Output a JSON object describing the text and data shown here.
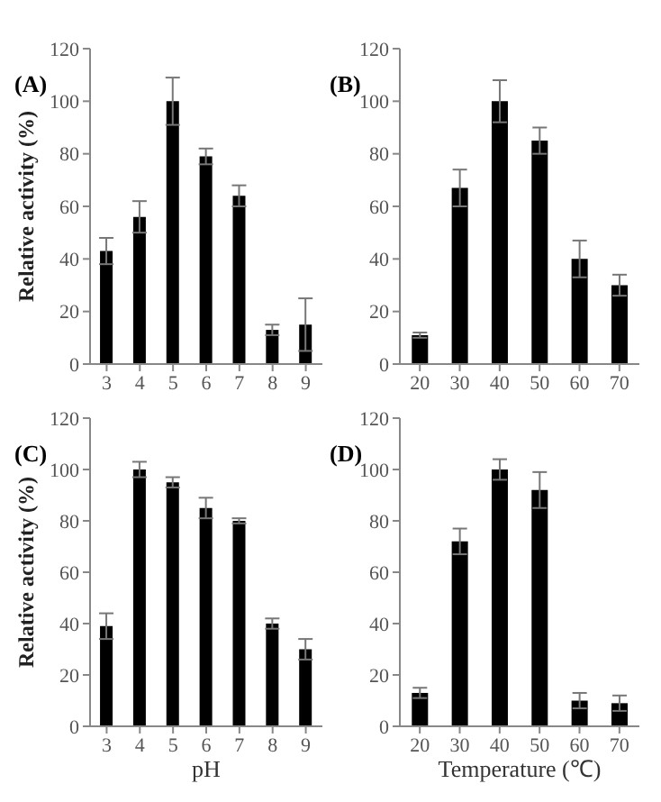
{
  "chart_data": [
    {
      "type": "bar",
      "title": "(A)",
      "ylabel": "Relative activity (%)",
      "categories": [
        "3",
        "4",
        "5",
        "6",
        "7",
        "8",
        "9"
      ],
      "values": [
        43,
        56,
        100,
        79,
        64,
        13,
        15
      ],
      "errors": [
        5,
        6,
        9,
        3,
        4,
        2,
        10
      ],
      "color": "#000000",
      "ylim": [
        0,
        120
      ],
      "yticks": [
        0,
        20,
        40,
        60,
        80,
        100,
        120
      ],
      "grid": false
    },
    {
      "type": "bar",
      "title": "(B)",
      "categories": [
        "20",
        "30",
        "40",
        "50",
        "60",
        "70"
      ],
      "values": [
        11,
        67,
        100,
        85,
        40,
        30
      ],
      "errors": [
        1,
        7,
        8,
        5,
        7,
        4
      ],
      "color": "#000000",
      "ylim": [
        0,
        120
      ],
      "yticks": [
        0,
        20,
        40,
        60,
        80,
        100,
        120
      ],
      "grid": false
    },
    {
      "type": "bar",
      "title": "(C)",
      "ylabel": "Relative activity (%)",
      "xlabel": "pH",
      "categories": [
        "3",
        "4",
        "5",
        "6",
        "7",
        "8",
        "9"
      ],
      "values": [
        39,
        100,
        95,
        85,
        80,
        40,
        30
      ],
      "errors": [
        5,
        3,
        2,
        4,
        1,
        2,
        4
      ],
      "color": "#000000",
      "ylim": [
        0,
        120
      ],
      "yticks": [
        0,
        20,
        40,
        60,
        80,
        100,
        120
      ],
      "grid": false
    },
    {
      "type": "bar",
      "title": "(D)",
      "xlabel": "Temperature (℃)",
      "categories": [
        "20",
        "30",
        "40",
        "50",
        "60",
        "70"
      ],
      "values": [
        13,
        72,
        100,
        92,
        10,
        9
      ],
      "errors": [
        2,
        5,
        4,
        7,
        3,
        3
      ],
      "color": "#000000",
      "ylim": [
        0,
        120
      ],
      "yticks": [
        0,
        20,
        40,
        60,
        80,
        100,
        120
      ],
      "grid": false
    }
  ]
}
